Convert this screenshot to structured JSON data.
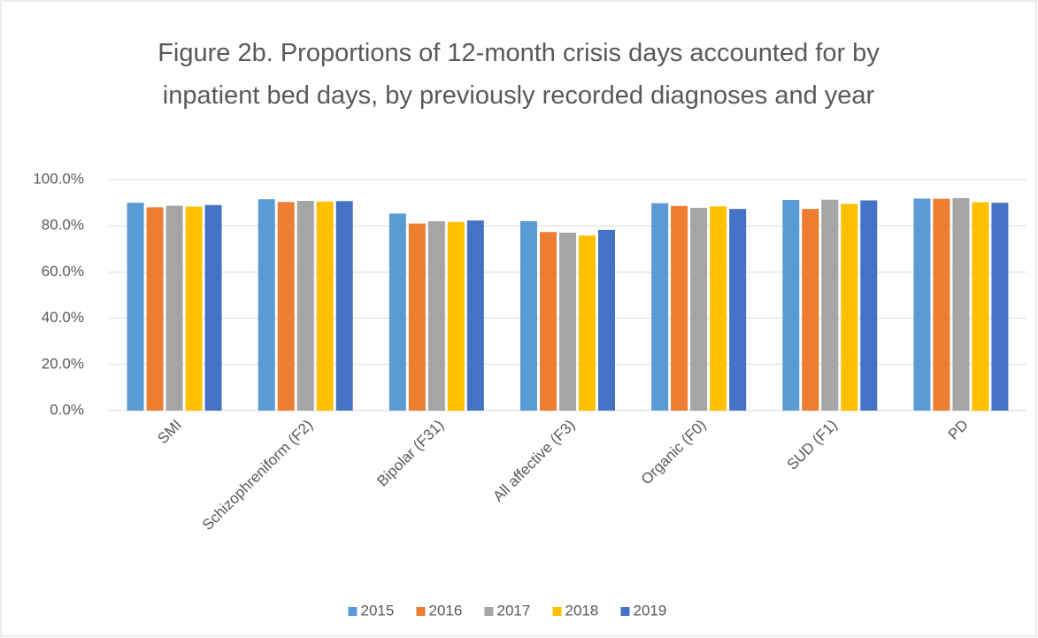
{
  "chart_data": {
    "type": "bar",
    "title": "Figure 2b. Proportions of 12-month crisis days accounted for by inpatient bed days, by previously recorded diagnoses and year",
    "categories": [
      "SMI",
      "Schizophreniform (F2)",
      "Bipolar (F31)",
      "All affective (F3)",
      "Organic (F0)",
      "SUD (F1)",
      "PD"
    ],
    "series": [
      {
        "name": "2015",
        "color": "#5b9bd5",
        "values": [
          90.0,
          91.5,
          85.3,
          82.0,
          89.8,
          91.2,
          91.8
        ]
      },
      {
        "name": "2016",
        "color": "#ed7d31",
        "values": [
          88.0,
          90.3,
          81.0,
          77.3,
          88.6,
          87.3,
          91.7
        ]
      },
      {
        "name": "2017",
        "color": "#a5a5a5",
        "values": [
          88.7,
          90.8,
          82.0,
          77.0,
          87.8,
          91.3,
          92.0
        ]
      },
      {
        "name": "2018",
        "color": "#ffc000",
        "values": [
          88.3,
          90.5,
          81.7,
          75.8,
          88.4,
          89.5,
          90.2
        ]
      },
      {
        "name": "2019",
        "color": "#4472c4",
        "values": [
          89.0,
          90.7,
          82.3,
          78.2,
          87.3,
          91.0,
          90.0
        ]
      }
    ],
    "ylim": [
      0,
      100
    ],
    "yticks": [
      {
        "value": 0,
        "label": "0.0%"
      },
      {
        "value": 20,
        "label": "20.0%"
      },
      {
        "value": 40,
        "label": "40.0%"
      },
      {
        "value": 60,
        "label": "60.0%"
      },
      {
        "value": 80,
        "label": "80.0%"
      },
      {
        "value": 100,
        "label": "100.0%"
      }
    ],
    "grid": true,
    "legend": "bottom"
  }
}
